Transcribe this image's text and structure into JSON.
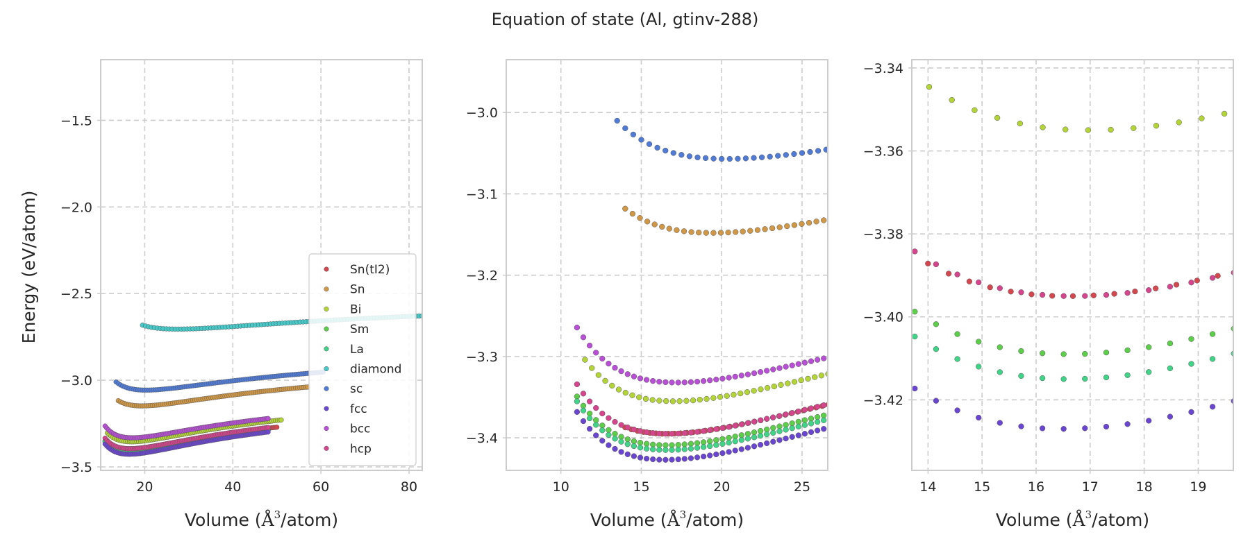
{
  "figure": {
    "title": "Equation of state (Al, gtinv-288)",
    "ylabel": "Energy (eV/atom)",
    "xlabel_prefix": "Volume (",
    "xlabel_unit": "Å",
    "xlabel_exp": "3",
    "xlabel_suffix": "/atom)"
  },
  "chart_data": [
    {
      "type": "scatter",
      "panel": "left",
      "xlim": [
        10,
        83
      ],
      "ylim": [
        -3.52,
        -1.15
      ],
      "xticks": [
        20,
        40,
        60,
        80
      ],
      "yticks": [
        -3.5,
        -3.0,
        -2.5,
        -2.0,
        -1.5
      ],
      "grid": true,
      "legend": "lower-right",
      "series": [
        {
          "name": "Sn(tI2)",
          "color": "#d4474e",
          "vmin": 14.0,
          "vmax": 50.0,
          "v0": 16.6,
          "e0": -3.395,
          "B": 0.52,
          "Bp": 4.5,
          "n": 95
        },
        {
          "name": "Sn",
          "color": "#d09846",
          "vmin": 14.0,
          "vmax": 57.0,
          "v0": 19.4,
          "e0": -3.148,
          "B": 0.47,
          "Bp": 4.5,
          "n": 95
        },
        {
          "name": "Bi",
          "color": "#b3d437",
          "vmin": 11.5,
          "vmax": 51.0,
          "v0": 17.0,
          "e0": -3.355,
          "B": 0.53,
          "Bp": 4.5,
          "n": 95
        },
        {
          "name": "Sm",
          "color": "#5cce4a",
          "vmin": 11.0,
          "vmax": 48.0,
          "v0": 16.6,
          "e0": -3.409,
          "B": 0.55,
          "Bp": 4.5,
          "n": 95
        },
        {
          "name": "La",
          "color": "#3fd487",
          "vmin": 11.0,
          "vmax": 48.0,
          "v0": 16.6,
          "e0": -3.415,
          "B": 0.55,
          "Bp": 4.5,
          "n": 95
        },
        {
          "name": "diamond",
          "color": "#46c9c9",
          "vmin": 19.5,
          "vmax": 83.0,
          "v0": 27.5,
          "e0": -2.705,
          "B": 0.32,
          "Bp": 4.5,
          "n": 95
        },
        {
          "name": "sc",
          "color": "#4f7bd6",
          "vmin": 13.5,
          "vmax": 60.5,
          "v0": 20.3,
          "e0": -3.057,
          "B": 0.44,
          "Bp": 4.5,
          "n": 95
        },
        {
          "name": "fcc",
          "color": "#6a45d1",
          "vmin": 11.0,
          "vmax": 48.0,
          "v0": 16.5,
          "e0": -3.427,
          "B": 0.56,
          "Bp": 4.5,
          "n": 95
        },
        {
          "name": "bcc",
          "color": "#b84fd6",
          "vmin": 11.0,
          "vmax": 48.0,
          "v0": 17.2,
          "e0": -3.332,
          "B": 0.51,
          "Bp": 4.5,
          "n": 95
        },
        {
          "name": "hcp",
          "color": "#d6448d",
          "vmin": 11.0,
          "vmax": 48.0,
          "v0": 16.7,
          "e0": -3.395,
          "B": 0.54,
          "Bp": 4.5,
          "n": 95
        }
      ]
    },
    {
      "type": "scatter",
      "panel": "middle",
      "xlim": [
        6.6,
        26.6
      ],
      "ylim": [
        -3.44,
        -2.935
      ],
      "xticks": [
        10,
        15,
        20,
        25
      ],
      "yticks": [
        -3.4,
        -3.3,
        -3.2,
        -3.1,
        -3.0
      ],
      "grid": true,
      "same_series_as": "left"
    },
    {
      "type": "scatter",
      "panel": "right",
      "xlim": [
        13.7,
        19.65
      ],
      "ylim": [
        -3.437,
        -3.338
      ],
      "xticks": [
        14,
        15,
        16,
        17,
        18,
        19
      ],
      "yticks": [
        -3.42,
        -3.4,
        -3.38,
        -3.36,
        -3.34
      ],
      "grid": true,
      "same_series_as": "left"
    }
  ]
}
